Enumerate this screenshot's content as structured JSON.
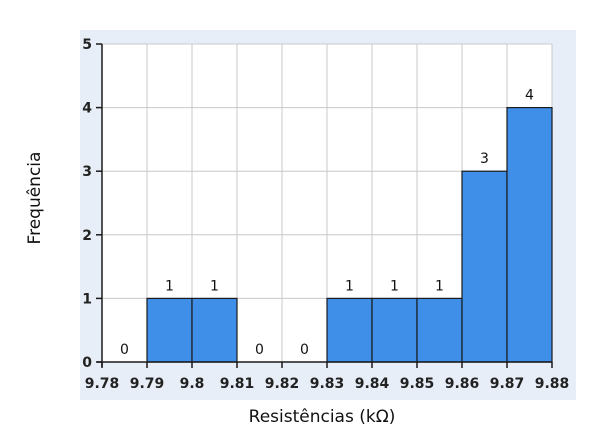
{
  "chart_data": {
    "type": "bar",
    "subtype": "histogram",
    "title": "",
    "xlabel": "Resistências (kΩ)",
    "ylabel": "Frequência",
    "bin_edges": [
      9.78,
      9.79,
      9.8,
      9.81,
      9.82,
      9.83,
      9.84,
      9.85,
      9.86,
      9.87,
      9.88
    ],
    "x_tick_labels": [
      "9.78",
      "9.79",
      "9.8",
      "9.81",
      "9.82",
      "9.83",
      "9.84",
      "9.85",
      "9.86",
      "9.87",
      "9.88"
    ],
    "values": [
      0,
      1,
      1,
      0,
      0,
      1,
      1,
      1,
      3,
      4
    ],
    "data_labels": [
      "0",
      "1",
      "1",
      "0",
      "0",
      "1",
      "1",
      "1",
      "3",
      "4"
    ],
    "y_ticks": [
      0,
      1,
      2,
      3,
      4,
      5
    ],
    "y_tick_labels": [
      "0",
      "1",
      "2",
      "3",
      "4",
      "5"
    ],
    "xlim": [
      9.78,
      9.88
    ],
    "ylim": [
      0,
      5
    ],
    "grid": true,
    "legend": "none",
    "colors": {
      "bar_fill": "#3f8fe8",
      "bar_edge": "#1a1a1a",
      "plot_background": "#ffffff",
      "frame_background": "#e8eef7",
      "grid": "#c8c8c8",
      "axis": "#1a1a1a"
    }
  }
}
